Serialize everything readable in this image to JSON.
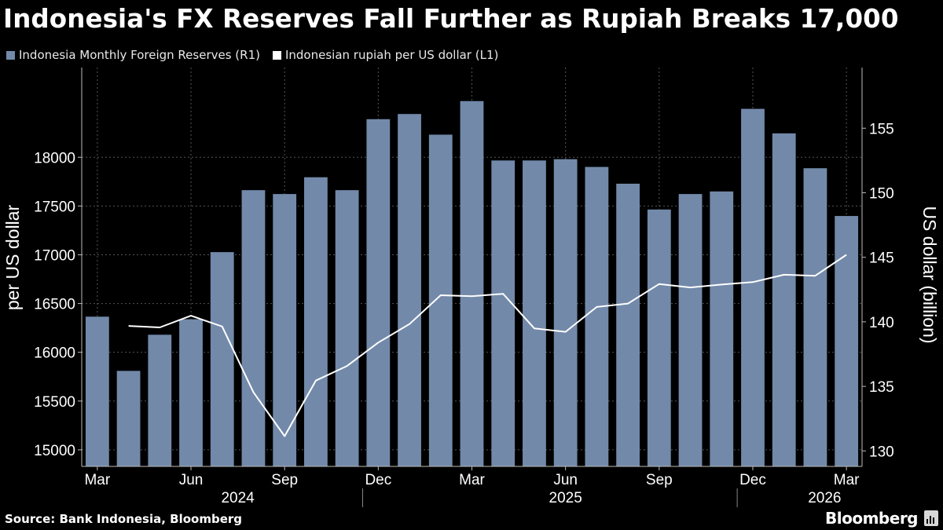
{
  "title": "Indonesia's FX Reserves Fall Further as Rupiah Breaks 17,000",
  "legend": {
    "bars_label": "Indonesia Monthly Foreign Reserves (R1)",
    "line_label": "Indonesian rupiah per US dollar (L1)"
  },
  "colors": {
    "bar": "#7289aa",
    "line": "#ffffff",
    "background": "#000000",
    "grid": "#555555"
  },
  "footer": {
    "source": "Source: Bank Indonesia, Bloomberg",
    "brand": "Bloomberg"
  },
  "chart_data": {
    "type": "bar+line",
    "title": "Indonesia's FX Reserves Fall Further as Rupiah Breaks 17,000",
    "categories": [
      "2024-03",
      "2024-04",
      "2024-05",
      "2024-06",
      "2024-07",
      "2024-08",
      "2024-09",
      "2024-10",
      "2024-11",
      "2024-12",
      "2025-01",
      "2025-02",
      "2025-03",
      "2025-04",
      "2025-05",
      "2025-06",
      "2025-07",
      "2025-08",
      "2025-09",
      "2025-10",
      "2025-11",
      "2025-12",
      "2026-01",
      "2026-02",
      "2026-03"
    ],
    "x_tick_labels": [
      {
        "index": 0,
        "label": "Mar"
      },
      {
        "index": 3,
        "label": "Jun"
      },
      {
        "index": 6,
        "label": "Sep"
      },
      {
        "index": 9,
        "label": "Dec"
      },
      {
        "index": 12,
        "label": "Mar"
      },
      {
        "index": 15,
        "label": "Jun"
      },
      {
        "index": 18,
        "label": "Sep"
      },
      {
        "index": 21,
        "label": "Dec"
      },
      {
        "index": 24,
        "label": "Mar"
      }
    ],
    "year_labels": [
      {
        "index": 4.5,
        "label": "2024"
      },
      {
        "index": 15,
        "label": "2025"
      },
      {
        "index": 23.3,
        "label": "2026"
      }
    ],
    "year_dividers": [
      8.5,
      20.5
    ],
    "bar_series": {
      "name": "Indonesia Monthly Foreign Reserves (R1)",
      "axis": "right",
      "values": [
        140.4,
        136.2,
        139.0,
        140.2,
        145.4,
        150.2,
        149.9,
        151.2,
        150.2,
        155.7,
        156.1,
        154.5,
        157.1,
        152.5,
        152.5,
        152.6,
        152.0,
        150.7,
        148.7,
        149.9,
        150.1,
        156.5,
        154.6,
        151.9,
        148.2
      ]
    },
    "line_series": {
      "name": "Indonesian rupiah per US dollar (L1)",
      "axis": "left",
      "values": [
        null,
        16270,
        16255,
        16375,
        16265,
        15590,
        15140,
        15710,
        15860,
        16100,
        16290,
        16585,
        16575,
        16600,
        16245,
        16210,
        16465,
        16500,
        16700,
        16665,
        16695,
        16720,
        16795,
        16785,
        17000
      ]
    },
    "y_left": {
      "label": "per US dollar",
      "range": [
        14830,
        18920
      ],
      "ticks": [
        15000,
        15500,
        16000,
        16500,
        17000,
        17500,
        18000
      ]
    },
    "y_right": {
      "label": "US dollar (billion)",
      "range": [
        128.8,
        159.7
      ],
      "ticks": [
        130,
        135,
        140,
        145,
        150,
        155
      ]
    }
  }
}
